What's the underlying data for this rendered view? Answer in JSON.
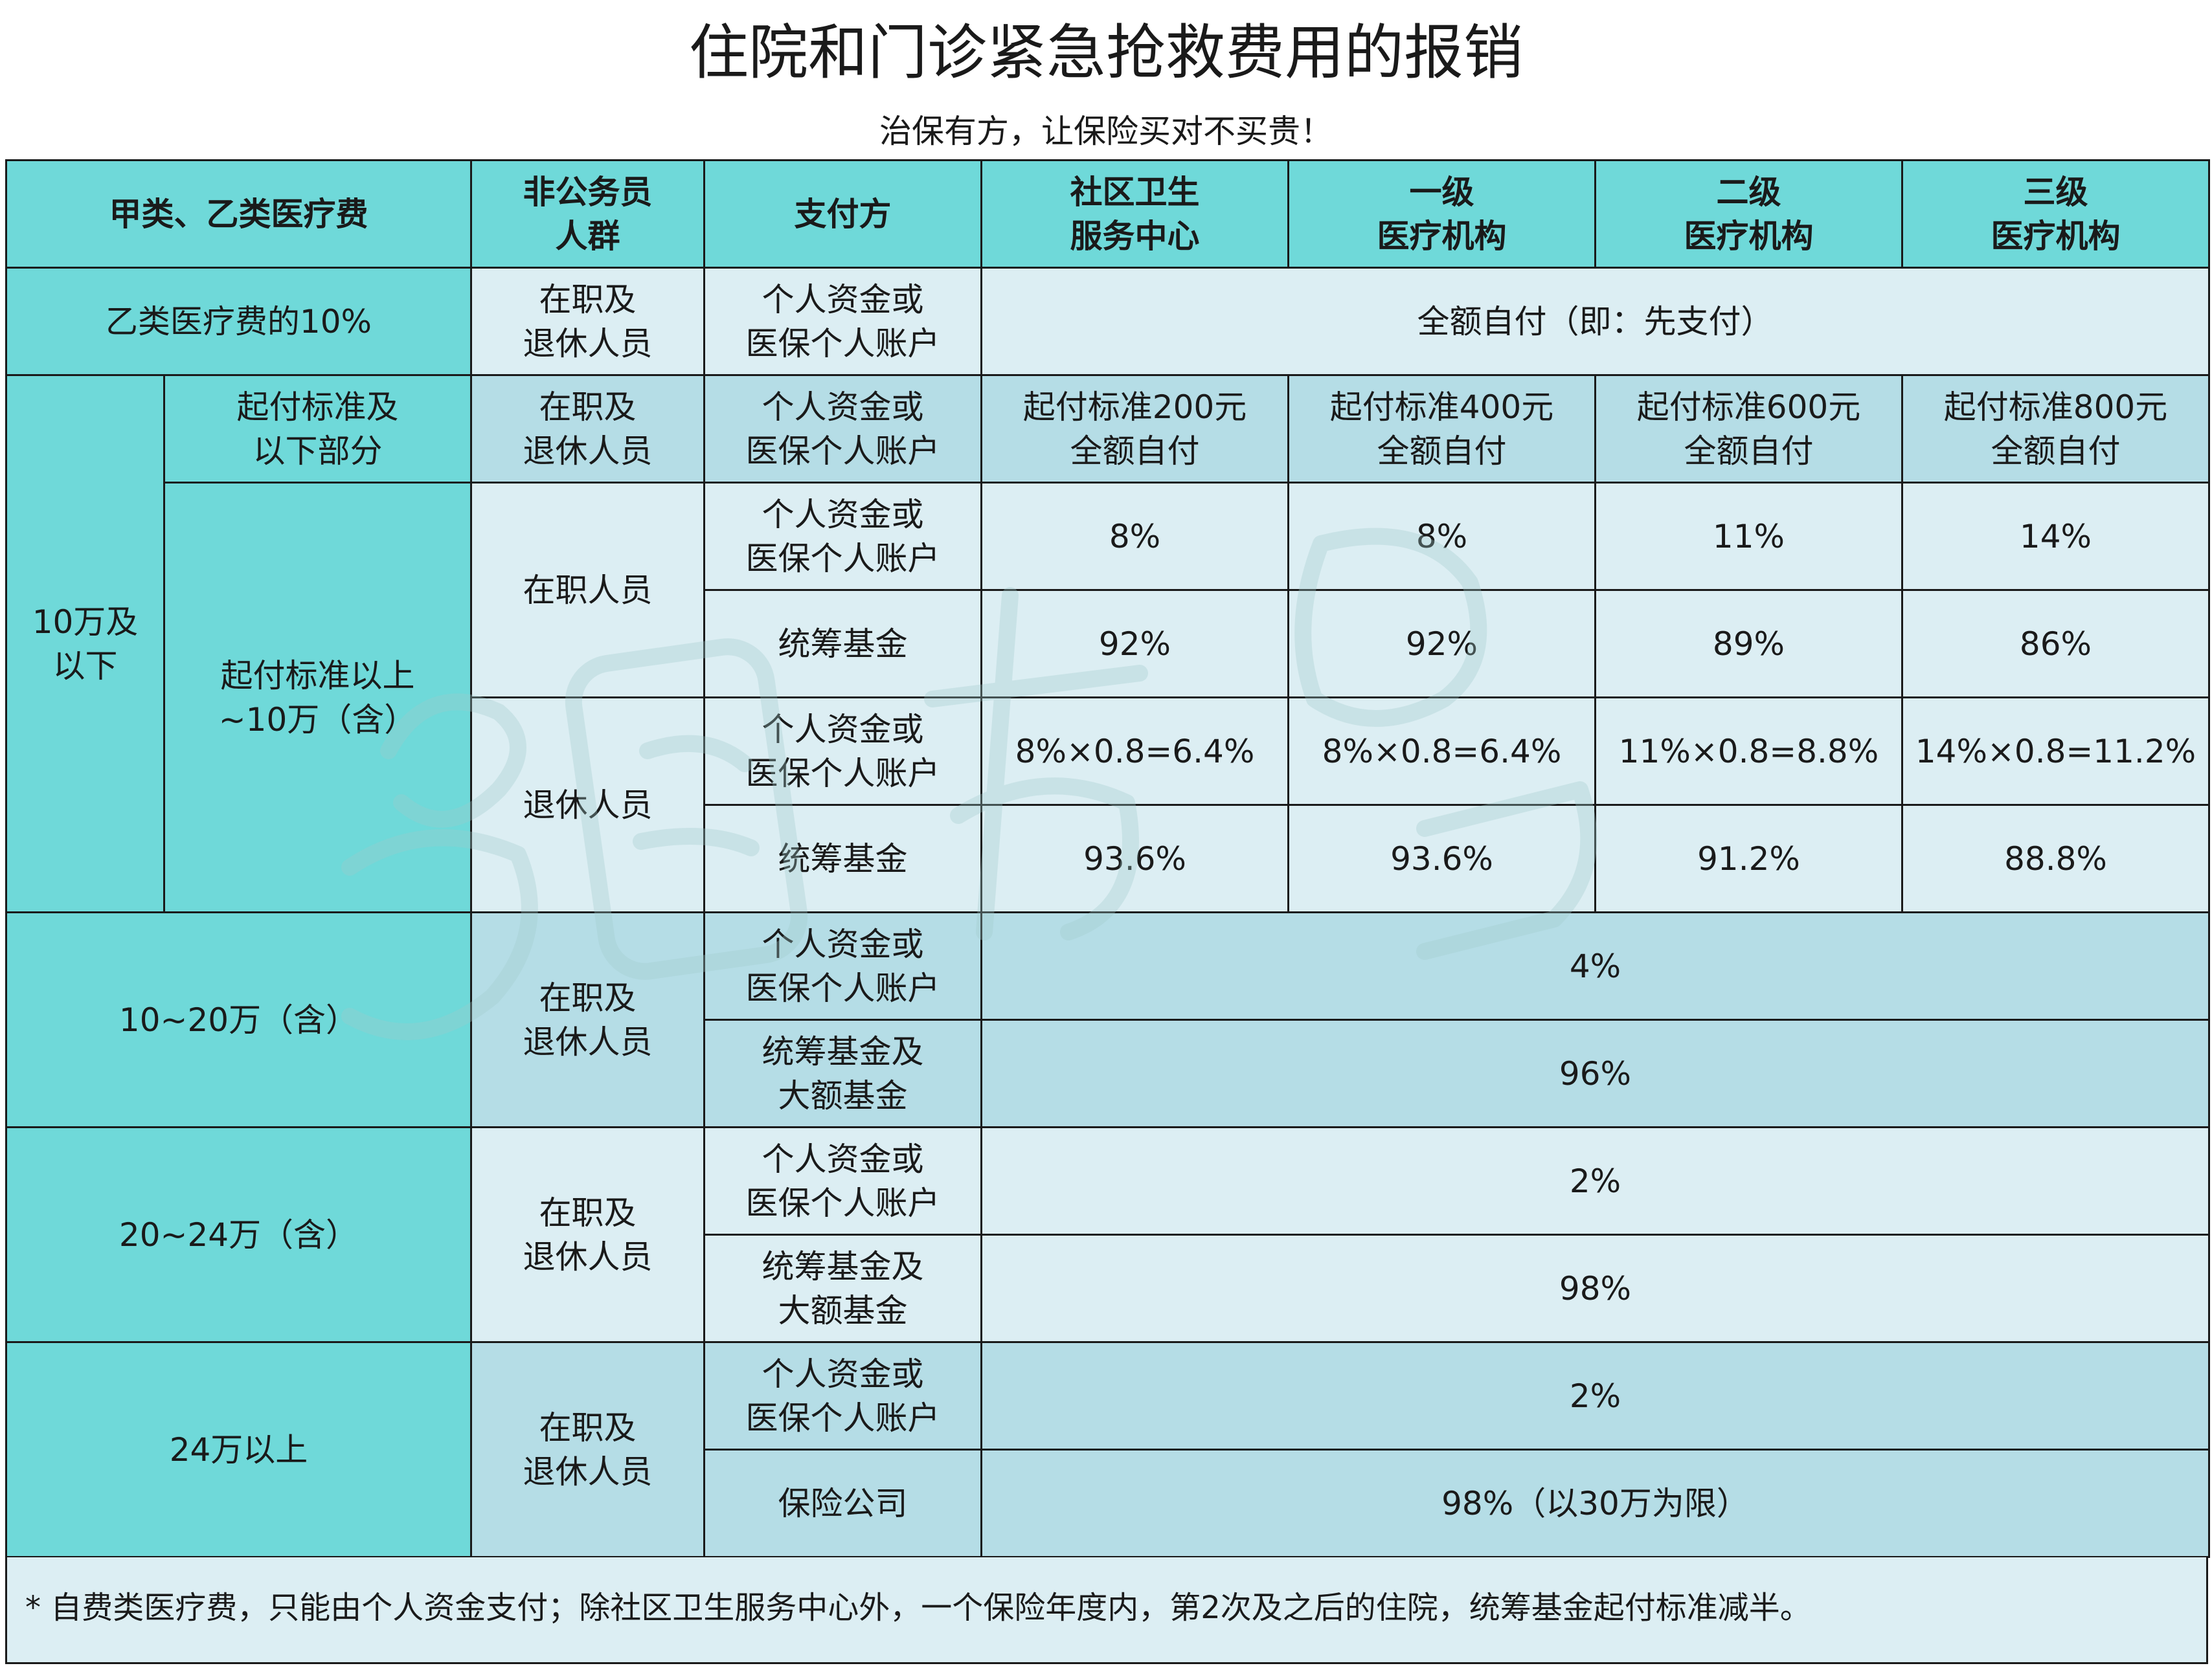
{
  "title": "住院和门诊紧急抢救费用的报销",
  "subtitle": "治保有方，让保险买对不买贵！",
  "header": {
    "col_fee": "甲类、乙类医疗费",
    "col_group": "非公务员\n人群",
    "col_payer": "支付方",
    "col_community": "社区卫生\n服务中心",
    "col_level1": "一级\n医疗机构",
    "col_level2": "二级\n医疗机构",
    "col_level3": "三级\n医疗机构"
  },
  "row_classb": {
    "fee": "乙类医疗费的10%",
    "group": "在职及\n退休人员",
    "payer": "个人资金或\n医保个人账户",
    "value": "全额自付（即：先支付）"
  },
  "section_100k": {
    "label": "10万及\n以下",
    "deductible": {
      "fee": "起付标准及\n以下部分",
      "group": "在职及\n退休人员",
      "payer": "个人资金或\n医保个人账户",
      "values": [
        "起付标准200元\n全额自付",
        "起付标准400元\n全额自付",
        "起付标准600元\n全额自付",
        "起付标准800元\n全额自付"
      ]
    },
    "above": {
      "fee": "起付标准以上\n~10万（含）",
      "employed": {
        "group": "在职人员",
        "personal_payer": "个人资金或\n医保个人账户",
        "personal_values": [
          "8%",
          "8%",
          "11%",
          "14%"
        ],
        "fund_payer": "统筹基金",
        "fund_values": [
          "92%",
          "92%",
          "89%",
          "86%"
        ]
      },
      "retired": {
        "group": "退休人员",
        "personal_payer": "个人资金或\n医保个人账户",
        "personal_values": [
          "8%×0.8=6.4%",
          "8%×0.8=6.4%",
          "11%×0.8=8.8%",
          "14%×0.8=11.2%"
        ],
        "fund_payer": "统筹基金",
        "fund_values": [
          "93.6%",
          "93.6%",
          "91.2%",
          "88.8%"
        ]
      }
    }
  },
  "section_100_200k": {
    "fee": "10~20万（含）",
    "group": "在职及\n退休人员",
    "personal_payer": "个人资金或\n医保个人账户",
    "personal_value": "4%",
    "fund_payer": "统筹基金及\n大额基金",
    "fund_value": "96%"
  },
  "section_200_240k": {
    "fee": "20~24万（含）",
    "group": "在职及\n退休人员",
    "personal_payer": "个人资金或\n医保个人账户",
    "personal_value": "2%",
    "fund_payer": "统筹基金及\n大额基金",
    "fund_value": "98%"
  },
  "section_240k_plus": {
    "fee": "24万以上",
    "group": "在职及\n退休人员",
    "personal_payer": "个人资金或\n医保个人账户",
    "personal_value": "2%",
    "insurer_payer": "保险公司",
    "insurer_value": "98%（以30万为限）"
  },
  "footnote": "* 自费类医疗费，只能由个人资金支付；除社区卫生服务中心外，一个保险年度内，第2次及之后的住院，统筹基金起付标准减半。",
  "colors": {
    "header_teal": "#6fd9d9",
    "row_mid": "#b5dde6",
    "row_light": "#dceef3"
  }
}
